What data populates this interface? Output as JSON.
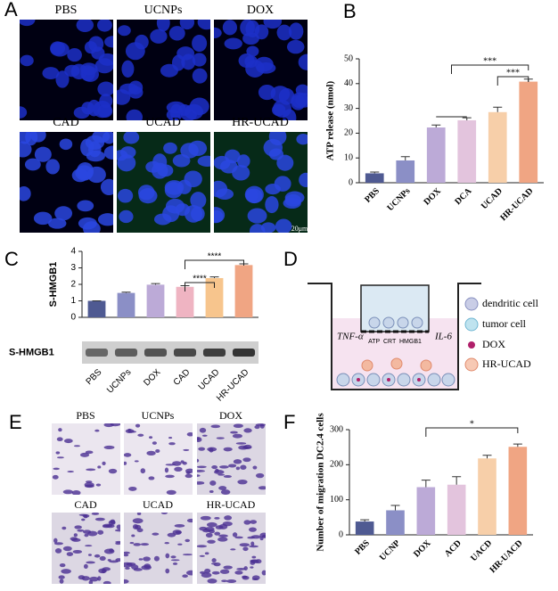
{
  "panels": {
    "A": {
      "letter": "A",
      "labels": [
        "PBS",
        "UCNPs",
        "DOX",
        "CAD",
        "UCAD",
        "HR-UCAD"
      ],
      "scale_bar": "20μm"
    },
    "D": {
      "letter": "D",
      "left": "TNF-α",
      "right": "IL-6",
      "markers": "ATP  CRT  HMGB1",
      "legend": [
        "dendritic cell",
        "tumor cell",
        "DOX",
        "HR-UCAD"
      ]
    },
    "E": {
      "letter": "E",
      "labels": [
        "PBS",
        "UCNPs",
        "DOX",
        "CAD",
        "UCAD",
        "HR-UCAD"
      ]
    }
  },
  "chart_data": [
    {
      "type": "bar",
      "panel": "B",
      "ylabel": "ATP release (nmol)",
      "categories": [
        "PBS",
        "UCNPs",
        "DOX",
        "DCA",
        "UCAD",
        "HR-UCAD"
      ],
      "values": [
        3.8,
        9,
        22.3,
        25.2,
        28.5,
        40.8
      ],
      "errors": [
        0.5,
        1.5,
        1,
        1,
        2,
        1
      ],
      "colors": [
        "#4f5a92",
        "#8b8fc6",
        "#bcaad7",
        "#e3c4dd",
        "#f7cfa9",
        "#f0a583"
      ],
      "ylim": [
        0,
        50
      ],
      "yticks": [
        0,
        10,
        20,
        30,
        40,
        50
      ],
      "annotations": [
        "***",
        "***"
      ]
    },
    {
      "type": "bar",
      "panel": "C",
      "ylabel": "S-HMGB1",
      "blot_label": "S-HMGB1",
      "categories": [
        "PBS",
        "UCNPs",
        "DOX",
        "CAD",
        "UCAD",
        "HR-UCAD"
      ],
      "values": [
        1,
        1.48,
        1.98,
        1.85,
        2.38,
        3.17
      ],
      "errors": [
        0,
        0.05,
        0.07,
        0.07,
        0.07,
        0.07
      ],
      "colors": [
        "#4f5a92",
        "#8b8fc6",
        "#bcaad7",
        "#efb4c2",
        "#f7c58d",
        "#f0a583"
      ],
      "ylim": [
        0,
        4
      ],
      "yticks": [
        0,
        1,
        2,
        3,
        4
      ],
      "annotations": [
        "****",
        "****"
      ]
    },
    {
      "type": "bar",
      "panel": "F",
      "ylabel": "Number of migration DC2.4 cells",
      "categories": [
        "PBS",
        "UCNP",
        "DOX",
        "ACD",
        "UACD",
        "HR-UACD"
      ],
      "values": [
        38,
        70,
        136,
        143,
        218,
        251
      ],
      "errors": [
        5,
        14,
        20,
        23,
        9,
        8
      ],
      "colors": [
        "#4f5a92",
        "#8b8fc6",
        "#bcaad7",
        "#e3c4dd",
        "#f7cfa9",
        "#f0a583"
      ],
      "ylim": [
        0,
        300
      ],
      "yticks": [
        0,
        100,
        200,
        300
      ],
      "annotations": [
        "*"
      ]
    }
  ]
}
